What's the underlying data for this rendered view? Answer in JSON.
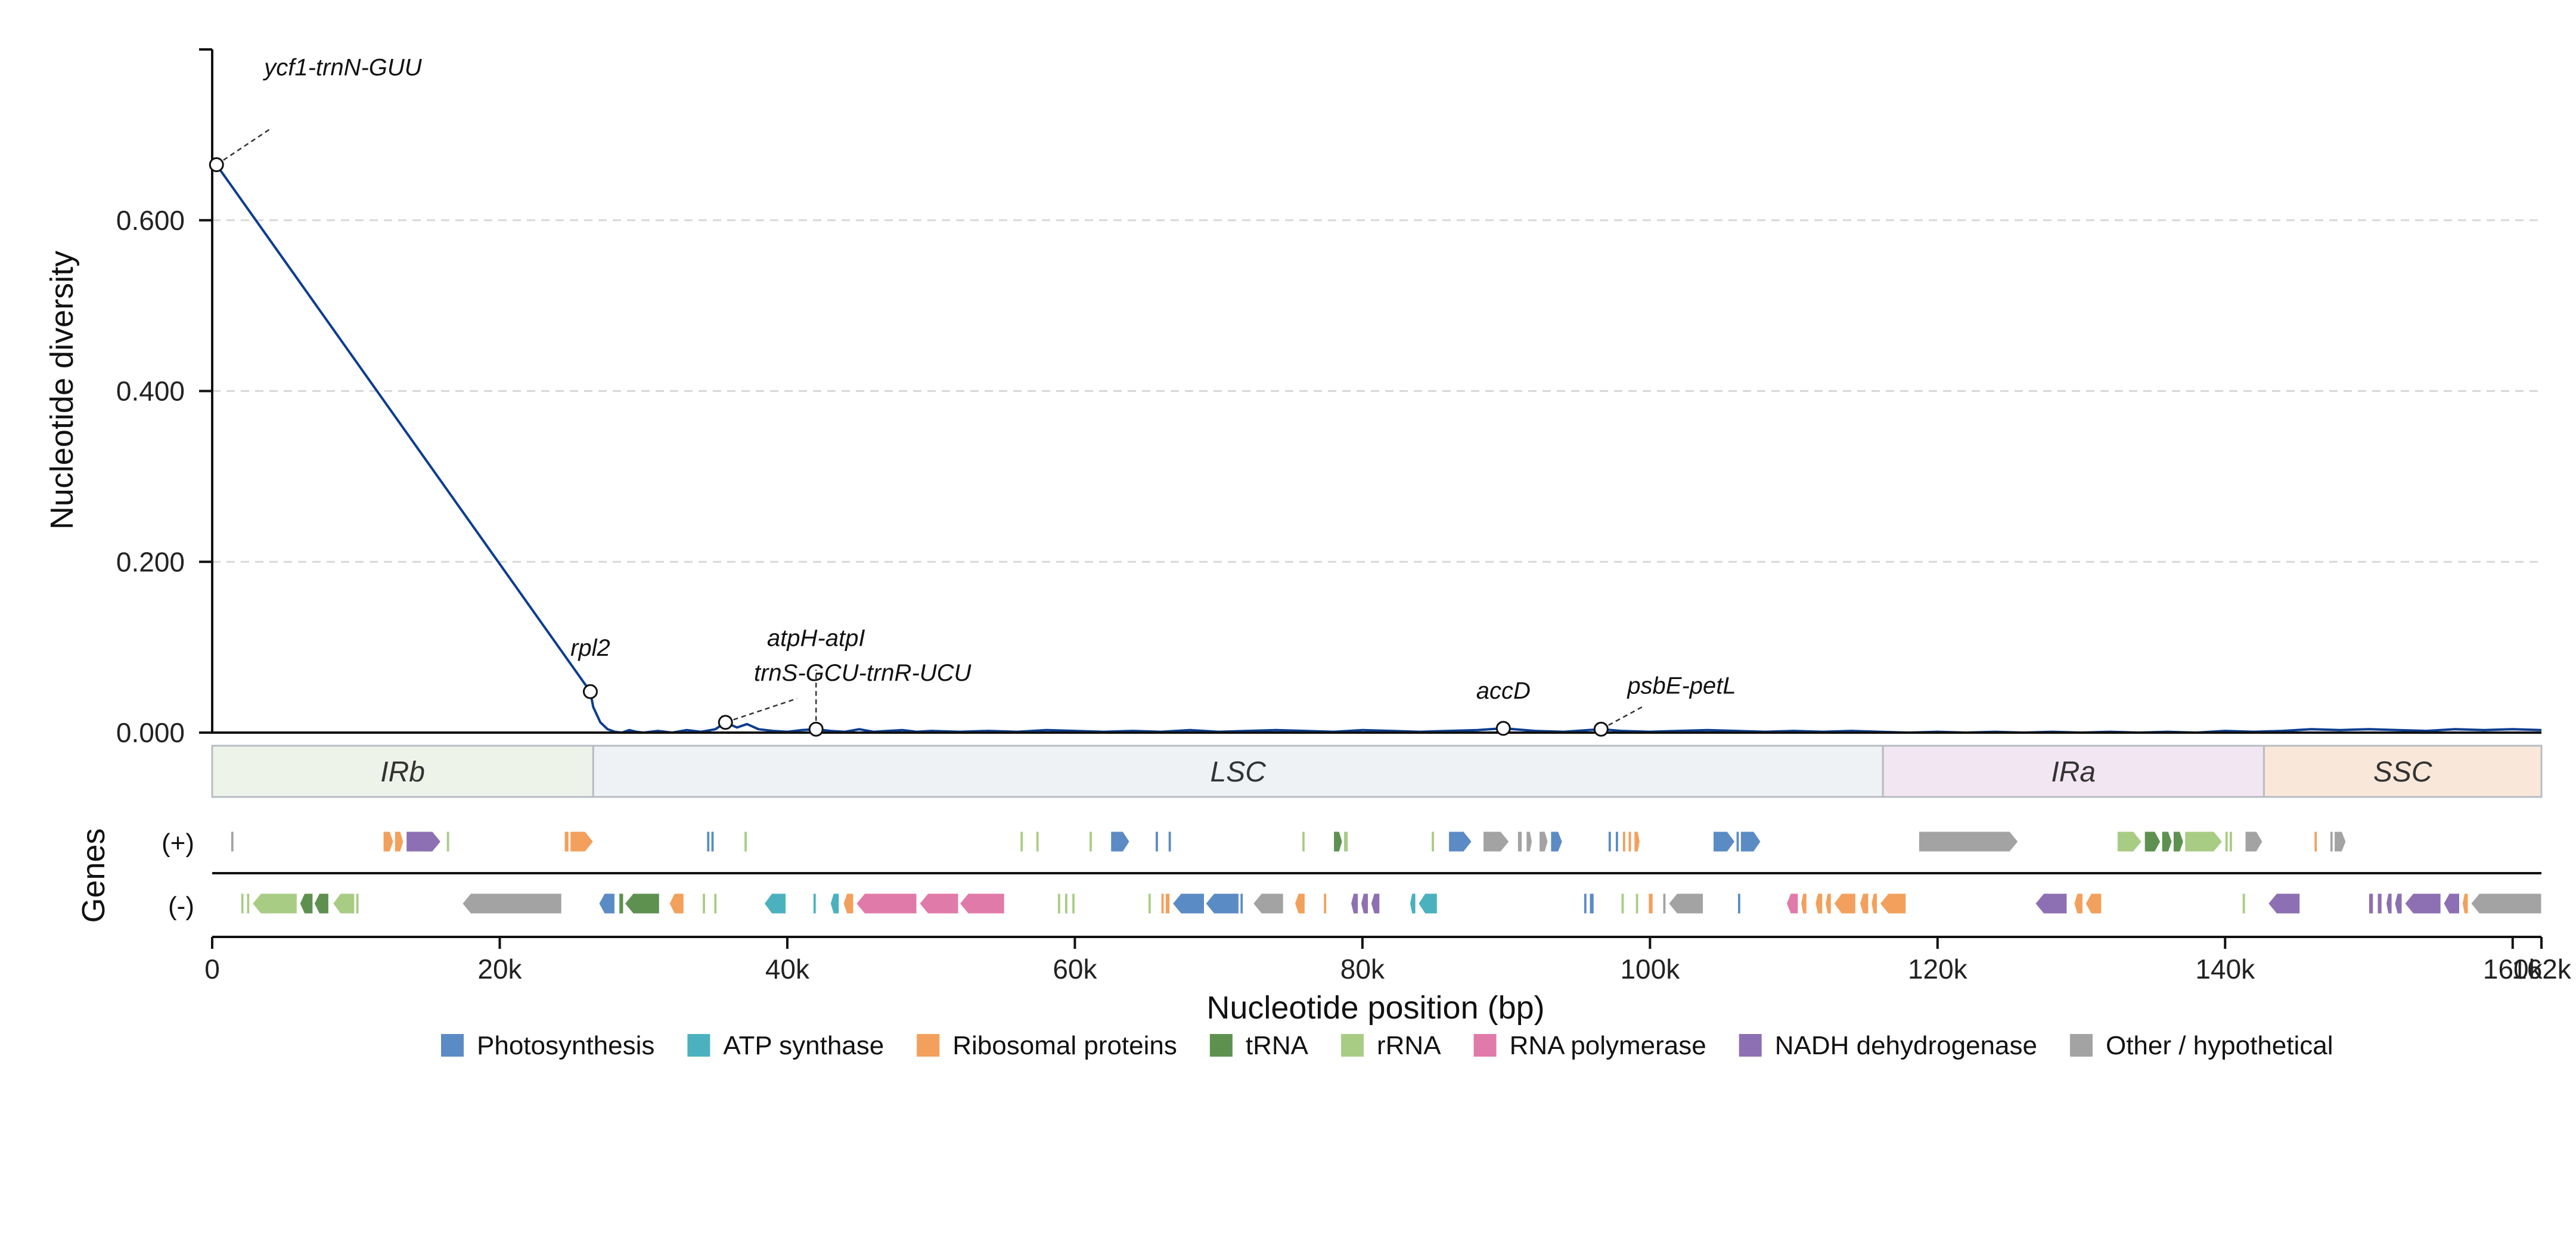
{
  "chart_data": {
    "type": "line",
    "xlabel": "Nucleotide position (bp)",
    "ylabel": "Nucleotide diversity",
    "genes_label": "Genes",
    "strand_labels": [
      "(+)",
      "(-)"
    ],
    "xlim": [
      0,
      162000
    ],
    "ylim": [
      0,
      0.8
    ],
    "x_ticks": [
      0,
      20000,
      40000,
      60000,
      80000,
      100000,
      120000,
      140000,
      160000,
      162000
    ],
    "x_tick_labels": [
      "0",
      "20k",
      "40k",
      "60k",
      "80k",
      "100k",
      "120k",
      "140k",
      "160k",
      "162k"
    ],
    "y_ticks": [
      0,
      0.2,
      0.4,
      0.6
    ],
    "y_tick_labels": [
      "0.000",
      "0.200",
      "0.400",
      "0.600"
    ],
    "grid": "horizontal dashed",
    "series_color": "#0b3d8f",
    "series": [
      {
        "x": [
          300,
          26300,
          26500,
          27000,
          27500,
          28000,
          28500,
          29000,
          29500,
          30000,
          31000,
          32000,
          33000,
          34000,
          35000,
          35700,
          36500,
          37200,
          38000,
          39000,
          40000,
          41000,
          42000,
          43000,
          44000,
          45000,
          46000,
          47000,
          48000,
          49000,
          50000,
          52000,
          54000,
          56000,
          58000,
          60000,
          62000,
          64000,
          66000,
          68000,
          70000,
          72000,
          74000,
          76000,
          78000,
          80000,
          82000,
          84000,
          86000,
          88000,
          89800,
          92000,
          94000,
          96600,
          98000,
          100000,
          102000,
          104000,
          106000,
          108000,
          110000,
          112000,
          114000,
          116000,
          118000,
          120000,
          122000,
          124000,
          126000,
          128000,
          130000,
          132000,
          134000,
          136000,
          138000,
          140000,
          142000,
          144000,
          146000,
          148000,
          150000,
          152000,
          154000,
          156000,
          158000,
          160000,
          162000
        ],
        "y": [
          0.665,
          0.048,
          0.03,
          0.012,
          0.004,
          0.001,
          0.0,
          0.003,
          0.001,
          0.0,
          0.002,
          0.0,
          0.003,
          0.001,
          0.004,
          0.012,
          0.006,
          0.01,
          0.004,
          0.002,
          0.001,
          0.003,
          0.004,
          0.002,
          0.001,
          0.004,
          0.001,
          0.002,
          0.003,
          0.001,
          0.002,
          0.001,
          0.002,
          0.001,
          0.003,
          0.002,
          0.001,
          0.002,
          0.001,
          0.003,
          0.001,
          0.002,
          0.003,
          0.002,
          0.001,
          0.003,
          0.002,
          0.001,
          0.002,
          0.003,
          0.005,
          0.002,
          0.001,
          0.004,
          0.002,
          0.001,
          0.002,
          0.003,
          0.002,
          0.001,
          0.002,
          0.001,
          0.002,
          0.001,
          0.0,
          0.001,
          0.0,
          0.001,
          0.0,
          0.001,
          0.0,
          0.001,
          0.0,
          0.001,
          0.0,
          0.002,
          0.001,
          0.002,
          0.004,
          0.003,
          0.004,
          0.003,
          0.002,
          0.004,
          0.003,
          0.004,
          0.003
        ]
      }
    ],
    "highlighted_points": [
      {
        "label": "ycf1-trnN-GUU",
        "x": 300,
        "y": 0.665
      },
      {
        "label": "rpl2",
        "x": 26300,
        "y": 0.048
      },
      {
        "label": "trnS-GCU-trnR-UCU",
        "x": 35700,
        "y": 0.012
      },
      {
        "label": "atpH-atpI",
        "x": 42000,
        "y": 0.004
      },
      {
        "label": "accD",
        "x": 89800,
        "y": 0.005
      },
      {
        "label": "psbE-petL",
        "x": 96600,
        "y": 0.004
      }
    ],
    "regions": [
      {
        "name": "IRb",
        "start": 0,
        "end": 26500,
        "color": "#eef3ea"
      },
      {
        "name": "LSC",
        "start": 26500,
        "end": 116200,
        "color": "#eef2f5"
      },
      {
        "name": "IRa",
        "start": 116200,
        "end": 142700,
        "color": "#f1e6f1"
      },
      {
        "name": "SSC",
        "start": 142700,
        "end": 162000,
        "color": "#f9e8da"
      }
    ],
    "legend": [
      {
        "label": "Photosynthesis",
        "color": "#5b8bc5"
      },
      {
        "label": "ATP synthase",
        "color": "#4bb1bf"
      },
      {
        "label": "Ribosomal proteins",
        "color": "#f2a05c"
      },
      {
        "label": "tRNA",
        "color": "#5e9150"
      },
      {
        "label": "rRNA",
        "color": "#a9cc85"
      },
      {
        "label": "RNA polymerase",
        "color": "#e07aa9"
      },
      {
        "label": "NADH dehydrogenase",
        "color": "#8d70b3"
      },
      {
        "label": "Other / hypothetical",
        "color": "#a3a3a3"
      }
    ],
    "genes_plus": [
      {
        "start": 1300,
        "end": 1500,
        "cat": 7
      },
      {
        "start": 11900,
        "end": 12600,
        "cat": 2
      },
      {
        "start": 12700,
        "end": 13300,
        "cat": 2
      },
      {
        "start": 13500,
        "end": 15900,
        "cat": 6
      },
      {
        "start": 16300,
        "end": 16500,
        "cat": 4
      },
      {
        "start": 24500,
        "end": 24800,
        "cat": 2
      },
      {
        "start": 24900,
        "end": 26500,
        "cat": 2
      },
      {
        "start": 34400,
        "end": 34600,
        "cat": 0
      },
      {
        "start": 34700,
        "end": 34900,
        "cat": 0
      },
      {
        "start": 37000,
        "end": 37200,
        "cat": 4
      },
      {
        "start": 56200,
        "end": 56400,
        "cat": 4
      },
      {
        "start": 57300,
        "end": 57500,
        "cat": 4
      },
      {
        "start": 61000,
        "end": 61200,
        "cat": 4
      },
      {
        "start": 62500,
        "end": 63800,
        "cat": 0
      },
      {
        "start": 65600,
        "end": 65800,
        "cat": 0
      },
      {
        "start": 66500,
        "end": 66700,
        "cat": 0
      },
      {
        "start": 75800,
        "end": 76000,
        "cat": 4
      },
      {
        "start": 78000,
        "end": 78600,
        "cat": 3
      },
      {
        "start": 78700,
        "end": 79000,
        "cat": 4
      },
      {
        "start": 84800,
        "end": 85000,
        "cat": 4
      },
      {
        "start": 86000,
        "end": 87600,
        "cat": 0
      },
      {
        "start": 88400,
        "end": 90200,
        "cat": 7
      },
      {
        "start": 90800,
        "end": 91100,
        "cat": 7
      },
      {
        "start": 91400,
        "end": 91800,
        "cat": 7
      },
      {
        "start": 92300,
        "end": 92900,
        "cat": 7
      },
      {
        "start": 93100,
        "end": 93900,
        "cat": 0
      },
      {
        "start": 97100,
        "end": 97300,
        "cat": 0
      },
      {
        "start": 97600,
        "end": 97800,
        "cat": 0
      },
      {
        "start": 98100,
        "end": 98300,
        "cat": 2
      },
      {
        "start": 98500,
        "end": 98700,
        "cat": 2
      },
      {
        "start": 98900,
        "end": 99300,
        "cat": 2
      },
      {
        "start": 104400,
        "end": 105900,
        "cat": 0
      },
      {
        "start": 106000,
        "end": 106200,
        "cat": 0
      },
      {
        "start": 106300,
        "end": 107700,
        "cat": 0
      },
      {
        "start": 118700,
        "end": 125600,
        "cat": 7
      },
      {
        "start": 132500,
        "end": 134200,
        "cat": 4
      },
      {
        "start": 134400,
        "end": 135500,
        "cat": 3
      },
      {
        "start": 135600,
        "end": 136300,
        "cat": 3
      },
      {
        "start": 136400,
        "end": 137100,
        "cat": 3
      },
      {
        "start": 137200,
        "end": 139800,
        "cat": 4
      },
      {
        "start": 140000,
        "end": 140200,
        "cat": 4
      },
      {
        "start": 140300,
        "end": 140500,
        "cat": 4
      },
      {
        "start": 141400,
        "end": 142600,
        "cat": 7
      },
      {
        "start": 146200,
        "end": 146400,
        "cat": 2
      },
      {
        "start": 147300,
        "end": 147500,
        "cat": 7
      },
      {
        "start": 147600,
        "end": 148400,
        "cat": 7
      }
    ],
    "genes_minus": [
      {
        "start": 2000,
        "end": 2200,
        "cat": 4
      },
      {
        "start": 2400,
        "end": 2600,
        "cat": 4
      },
      {
        "start": 2800,
        "end": 5900,
        "cat": 4
      },
      {
        "start": 6100,
        "end": 7000,
        "cat": 3
      },
      {
        "start": 7100,
        "end": 8100,
        "cat": 3
      },
      {
        "start": 8400,
        "end": 9900,
        "cat": 4
      },
      {
        "start": 10000,
        "end": 10200,
        "cat": 4
      },
      {
        "start": 17400,
        "end": 24300,
        "cat": 7
      },
      {
        "start": 26900,
        "end": 28000,
        "cat": 0
      },
      {
        "start": 28300,
        "end": 28600,
        "cat": 3
      },
      {
        "start": 28700,
        "end": 31100,
        "cat": 3
      },
      {
        "start": 31800,
        "end": 32800,
        "cat": 2
      },
      {
        "start": 34100,
        "end": 34300,
        "cat": 4
      },
      {
        "start": 34900,
        "end": 35100,
        "cat": 4
      },
      {
        "start": 38400,
        "end": 39900,
        "cat": 1
      },
      {
        "start": 41800,
        "end": 42000,
        "cat": 1
      },
      {
        "start": 43000,
        "end": 43600,
        "cat": 1
      },
      {
        "start": 43900,
        "end": 44600,
        "cat": 2
      },
      {
        "start": 44800,
        "end": 49000,
        "cat": 5
      },
      {
        "start": 49200,
        "end": 51900,
        "cat": 5
      },
      {
        "start": 52000,
        "end": 55100,
        "cat": 5
      },
      {
        "start": 58800,
        "end": 59000,
        "cat": 4
      },
      {
        "start": 59300,
        "end": 59500,
        "cat": 4
      },
      {
        "start": 59800,
        "end": 60000,
        "cat": 4
      },
      {
        "start": 65100,
        "end": 65300,
        "cat": 4
      },
      {
        "start": 66000,
        "end": 66200,
        "cat": 2
      },
      {
        "start": 66300,
        "end": 66600,
        "cat": 2
      },
      {
        "start": 66800,
        "end": 69000,
        "cat": 0
      },
      {
        "start": 69100,
        "end": 71400,
        "cat": 0
      },
      {
        "start": 71500,
        "end": 71700,
        "cat": 0
      },
      {
        "start": 72400,
        "end": 74500,
        "cat": 7
      },
      {
        "start": 75300,
        "end": 76000,
        "cat": 2
      },
      {
        "start": 77300,
        "end": 77500,
        "cat": 2
      },
      {
        "start": 79200,
        "end": 79700,
        "cat": 6
      },
      {
        "start": 79900,
        "end": 80400,
        "cat": 6
      },
      {
        "start": 80600,
        "end": 81200,
        "cat": 6
      },
      {
        "start": 83300,
        "end": 83700,
        "cat": 1
      },
      {
        "start": 83900,
        "end": 85200,
        "cat": 1
      },
      {
        "start": 95400,
        "end": 95600,
        "cat": 0
      },
      {
        "start": 95800,
        "end": 96100,
        "cat": 0
      },
      {
        "start": 98000,
        "end": 98200,
        "cat": 4
      },
      {
        "start": 99000,
        "end": 99200,
        "cat": 4
      },
      {
        "start": 99900,
        "end": 100200,
        "cat": 2
      },
      {
        "start": 100900,
        "end": 101100,
        "cat": 7
      },
      {
        "start": 101300,
        "end": 103700,
        "cat": 7
      },
      {
        "start": 106100,
        "end": 106300,
        "cat": 0
      },
      {
        "start": 109500,
        "end": 110300,
        "cat": 5
      },
      {
        "start": 110500,
        "end": 110900,
        "cat": 2
      },
      {
        "start": 111500,
        "end": 112000,
        "cat": 2
      },
      {
        "start": 112200,
        "end": 112600,
        "cat": 2
      },
      {
        "start": 112800,
        "end": 114300,
        "cat": 2
      },
      {
        "start": 114600,
        "end": 115200,
        "cat": 2
      },
      {
        "start": 115400,
        "end": 115800,
        "cat": 2
      },
      {
        "start": 116000,
        "end": 117800,
        "cat": 2
      },
      {
        "start": 126800,
        "end": 129000,
        "cat": 6
      },
      {
        "start": 129500,
        "end": 130100,
        "cat": 2
      },
      {
        "start": 130300,
        "end": 131400,
        "cat": 2
      },
      {
        "start": 141200,
        "end": 141400,
        "cat": 4
      },
      {
        "start": 143000,
        "end": 145200,
        "cat": 6
      },
      {
        "start": 150000,
        "end": 150300,
        "cat": 6
      },
      {
        "start": 150600,
        "end": 150900,
        "cat": 6
      },
      {
        "start": 151200,
        "end": 151600,
        "cat": 6
      },
      {
        "start": 151800,
        "end": 152300,
        "cat": 6
      },
      {
        "start": 152500,
        "end": 155000,
        "cat": 6
      },
      {
        "start": 155200,
        "end": 156300,
        "cat": 6
      },
      {
        "start": 156500,
        "end": 156900,
        "cat": 2
      },
      {
        "start": 157100,
        "end": 162000,
        "cat": 7
      }
    ]
  }
}
